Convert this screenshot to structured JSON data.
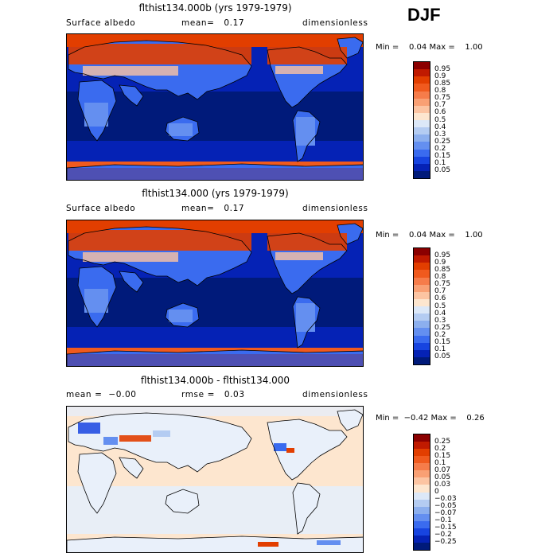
{
  "season": "DJF",
  "panels": [
    {
      "title": "flthist134.000b (yrs 1979-1979)",
      "variable": "Surface albedo",
      "stat1": "mean=   0.17",
      "stat2": "",
      "units": "dimensionless",
      "minmax": "Min =    0.04 Max =    1.00",
      "levels": [
        "0.95",
        "0.9",
        "0.85",
        "0.8",
        "0.75",
        "0.7",
        "0.6",
        "0.5",
        "0.4",
        "0.3",
        "0.25",
        "0.2",
        "0.15",
        "0.1",
        "0.05"
      ],
      "colors": [
        "#8b0000",
        "#c01a00",
        "#e23e00",
        "#f05a1e",
        "#f67c4a",
        "#f9a074",
        "#fcc4a2",
        "#fde6cf",
        "#dce8f8",
        "#b4ccf2",
        "#8cafee",
        "#648ff0",
        "#3a6bef",
        "#1744e0",
        "#0522b5",
        "#001a7a"
      ]
    },
    {
      "title": "flthist134.000 (yrs 1979-1979)",
      "variable": "Surface albedo",
      "stat1": "mean=   0.17",
      "stat2": "",
      "units": "dimensionless",
      "minmax": "Min =    0.04 Max =    1.00",
      "levels": [
        "0.95",
        "0.9",
        "0.85",
        "0.8",
        "0.75",
        "0.7",
        "0.6",
        "0.5",
        "0.4",
        "0.3",
        "0.25",
        "0.2",
        "0.15",
        "0.1",
        "0.05"
      ],
      "colors": [
        "#8b0000",
        "#c01a00",
        "#e23e00",
        "#f05a1e",
        "#f67c4a",
        "#f9a074",
        "#fcc4a2",
        "#fde6cf",
        "#dce8f8",
        "#b4ccf2",
        "#8cafee",
        "#648ff0",
        "#3a6bef",
        "#1744e0",
        "#0522b5",
        "#001a7a"
      ]
    },
    {
      "title": "flthist134.000b - flthist134.000",
      "variable": "mean =  −0.00",
      "stat1": "rmse =   0.03",
      "stat2": "",
      "units": "dimensionless",
      "minmax": "Min =  −0.42 Max =    0.26",
      "levels": [
        "0.25",
        "0.2",
        "0.15",
        "0.1",
        "0.07",
        "0.05",
        "0.03",
        "0",
        "−0.03",
        "−0.05",
        "−0.07",
        "−0.1",
        "−0.15",
        "−0.2",
        "−0.25"
      ],
      "colors": [
        "#8b0000",
        "#c01a00",
        "#e23e00",
        "#f05a1e",
        "#f67c4a",
        "#f9a074",
        "#fcc4a2",
        "#fde6cf",
        "#dce8f8",
        "#b4ccf2",
        "#8cafee",
        "#648ff0",
        "#3a6bef",
        "#1744e0",
        "#0522b5",
        "#001a7a"
      ]
    }
  ]
}
